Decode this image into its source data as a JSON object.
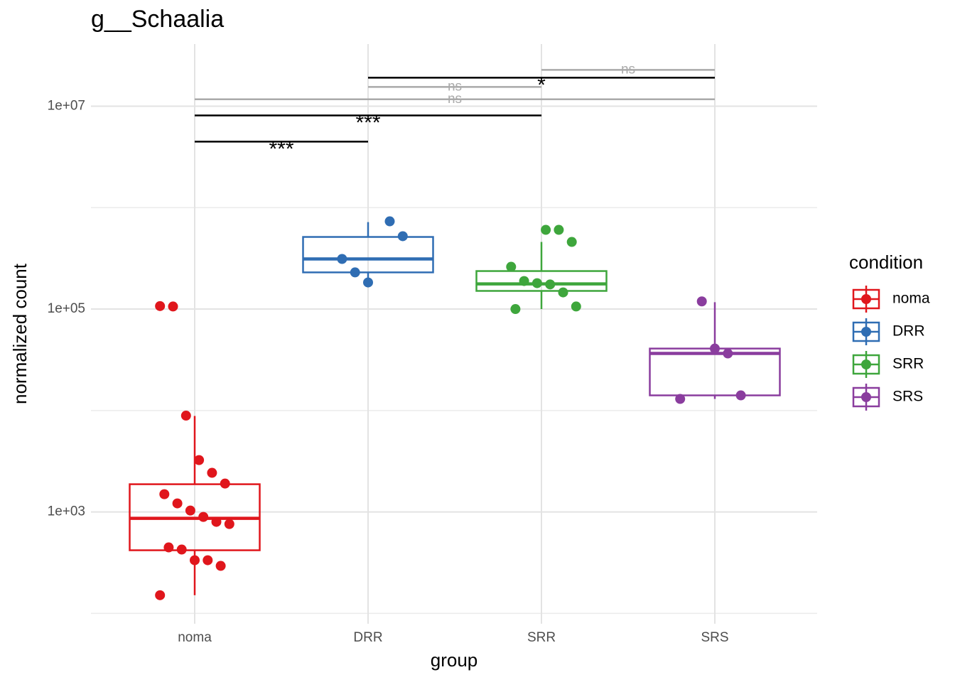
{
  "chart_data": {
    "type": "box",
    "title": "g__Schaalia",
    "x_label": "group",
    "y_label": "normalized count",
    "log_y": true,
    "grid": true,
    "categories": [
      "noma",
      "DRR",
      "SRR",
      "SRS"
    ],
    "ylim": [
      79,
      41000000
    ],
    "yticks": [
      {
        "value": 1000,
        "label": "1e+03"
      },
      {
        "value": 100000,
        "label": "1e+05"
      },
      {
        "value": 10000000,
        "label": "1e+07"
      }
    ],
    "y_minor_ticks": [
      100,
      10000,
      1000000
    ],
    "legend_title": "condition",
    "legend_position": "right",
    "series": [
      {
        "name": "noma",
        "color": "#e0161c",
        "box": {
          "whisker_low": 151,
          "q1": 419,
          "median": 865,
          "q3": 1876,
          "whisker_high": 8830
        },
        "points": [
          107000,
          106000,
          8900,
          3245,
          2430,
          1905,
          1496,
          1214,
          1032,
          893,
          798,
          760,
          447,
          426,
          334,
          334,
          294,
          151
        ]
      },
      {
        "name": "DRR",
        "color": "#2f6db3",
        "box": {
          "whisker_low": 183000,
          "q1": 230000,
          "median": 312000,
          "q3": 514000,
          "whisker_high": 720000
        },
        "points": [
          733000,
          523000,
          312000,
          230000,
          183000
        ]
      },
      {
        "name": "SRR",
        "color": "#3ea63c",
        "box": {
          "whisker_low": 100000,
          "q1": 151000,
          "median": 177000,
          "q3": 237000,
          "whisker_high": 459000
        },
        "points": [
          604000,
          604000,
          459000,
          261000,
          189000,
          180000,
          175000,
          146000,
          106000,
          100000
        ]
      },
      {
        "name": "SRS",
        "color": "#8a3d9e",
        "box": {
          "whisker_low": 13000,
          "q1": 14100,
          "median": 36500,
          "q3": 40800,
          "whisker_high": 117000
        },
        "points": [
          119000,
          40800,
          36500,
          14100,
          13000
        ]
      }
    ],
    "comparisons": [
      {
        "groups": [
          "noma",
          "DRR"
        ],
        "label": "***",
        "y": 4470000,
        "significant": true
      },
      {
        "groups": [
          "noma",
          "SRR"
        ],
        "label": "***",
        "y": 8100000,
        "significant": true
      },
      {
        "groups": [
          "noma",
          "SRS"
        ],
        "label": "ns",
        "y": 11700000,
        "significant": false
      },
      {
        "groups": [
          "DRR",
          "SRR"
        ],
        "label": "ns",
        "y": 15500000,
        "significant": false
      },
      {
        "groups": [
          "DRR",
          "SRS"
        ],
        "label": "*",
        "y": 19100000,
        "significant": true
      },
      {
        "groups": [
          "SRR",
          "SRS"
        ],
        "label": "ns",
        "y": 22800000,
        "significant": false
      }
    ]
  }
}
